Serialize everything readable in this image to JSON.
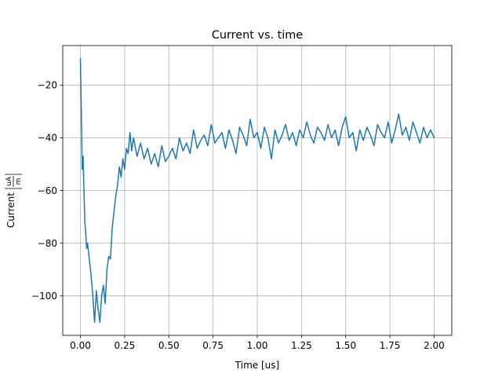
{
  "chart_data": {
    "type": "line",
    "title": "Current vs. time",
    "xlabel": "Time [us]",
    "ylabel_main": "Current",
    "ylabel_unit_num": "uA",
    "ylabel_unit_den": "m",
    "xlim": [
      -0.1,
      2.1
    ],
    "ylim": [
      -115,
      -5
    ],
    "grid": true,
    "x_ticks": [
      0.0,
      0.25,
      0.5,
      0.75,
      1.0,
      1.25,
      1.5,
      1.75,
      2.0
    ],
    "x_tick_labels": [
      "0.00",
      "0.25",
      "0.50",
      "0.75",
      "1.00",
      "1.25",
      "1.50",
      "1.75",
      "2.00"
    ],
    "y_ticks": [
      -100,
      -80,
      -60,
      -40,
      -20
    ],
    "y_tick_labels": [
      "−100",
      "−80",
      "−60",
      "−40",
      "−20"
    ],
    "series": [
      {
        "color": "#1f77b4",
        "x": [
          0.0,
          0.005,
          0.01,
          0.015,
          0.02,
          0.025,
          0.03,
          0.035,
          0.04,
          0.05,
          0.06,
          0.07,
          0.08,
          0.09,
          0.1,
          0.11,
          0.12,
          0.13,
          0.14,
          0.15,
          0.16,
          0.17,
          0.18,
          0.19,
          0.2,
          0.21,
          0.22,
          0.23,
          0.24,
          0.25,
          0.26,
          0.27,
          0.28,
          0.29,
          0.3,
          0.32,
          0.34,
          0.36,
          0.38,
          0.4,
          0.42,
          0.44,
          0.46,
          0.48,
          0.5,
          0.52,
          0.54,
          0.56,
          0.58,
          0.6,
          0.62,
          0.64,
          0.66,
          0.68,
          0.7,
          0.72,
          0.74,
          0.76,
          0.78,
          0.8,
          0.82,
          0.84,
          0.86,
          0.88,
          0.9,
          0.92,
          0.94,
          0.96,
          0.98,
          1.0,
          1.02,
          1.04,
          1.06,
          1.08,
          1.1,
          1.12,
          1.14,
          1.16,
          1.18,
          1.2,
          1.22,
          1.24,
          1.26,
          1.28,
          1.3,
          1.32,
          1.34,
          1.36,
          1.38,
          1.4,
          1.42,
          1.44,
          1.46,
          1.48,
          1.5,
          1.52,
          1.54,
          1.56,
          1.58,
          1.6,
          1.62,
          1.64,
          1.66,
          1.68,
          1.7,
          1.72,
          1.74,
          1.76,
          1.78,
          1.8,
          1.82,
          1.84,
          1.86,
          1.88,
          1.9,
          1.92,
          1.94,
          1.96,
          1.98,
          2.0
        ],
        "y": [
          -10,
          -30,
          -52,
          -47,
          -60,
          -72,
          -76,
          -82,
          -80,
          -86,
          -92,
          -100,
          -110,
          -98,
          -105,
          -110,
          -100,
          -96,
          -103,
          -90,
          -85,
          -86,
          -74,
          -68,
          -62,
          -58,
          -51,
          -55,
          -48,
          -52,
          -44,
          -46,
          -38,
          -45,
          -40,
          -47,
          -42,
          -48,
          -44,
          -50,
          -46,
          -51,
          -43,
          -49,
          -47,
          -44,
          -48,
          -40,
          -45,
          -42,
          -46,
          -37,
          -44,
          -41,
          -39,
          -43,
          -35,
          -42,
          -40,
          -38,
          -44,
          -37,
          -41,
          -46,
          -36,
          -39,
          -43,
          -33,
          -40,
          -38,
          -44,
          -36,
          -40,
          -48,
          -37,
          -42,
          -39,
          -35,
          -41,
          -38,
          -43,
          -37,
          -40,
          -34,
          -39,
          -42,
          -36,
          -38,
          -41,
          -35,
          -40,
          -37,
          -43,
          -36,
          -32,
          -40,
          -38,
          -45,
          -37,
          -41,
          -36,
          -39,
          -43,
          -35,
          -38,
          -40,
          -34,
          -42,
          -37,
          -31,
          -39,
          -36,
          -41,
          -34,
          -38,
          -42,
          -36,
          -40,
          -37,
          -40
        ]
      }
    ]
  }
}
